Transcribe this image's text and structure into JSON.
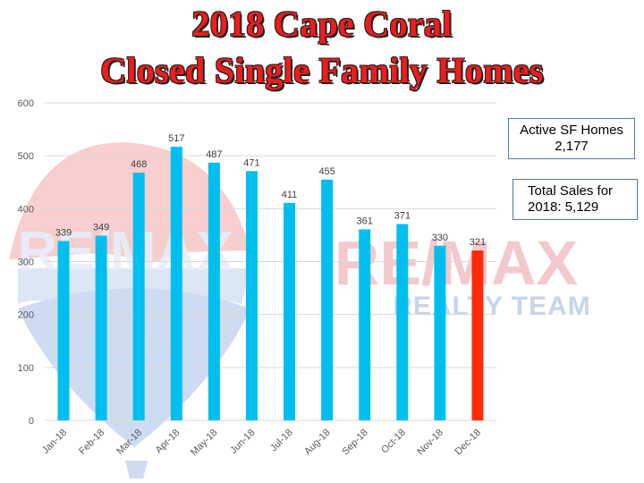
{
  "title_line1": "2018 Cape Coral",
  "title_line2": "Closed Single Family Homes",
  "info_boxes": [
    {
      "line1": "Active SF Homes",
      "line2": "2,177"
    },
    {
      "line1": "Total Sales for",
      "line2": "2018: 5,129"
    }
  ],
  "watermark": {
    "brand": "RE/MAX",
    "subtitle": "REALTY TEAM"
  },
  "chart_data": {
    "type": "bar",
    "categories": [
      "Jan-18",
      "Feb-18",
      "Mar-18",
      "Apr-18",
      "May-18",
      "Jun-18",
      "Jul-18",
      "Aug-18",
      "Sep-18",
      "Oct-18",
      "Nov-18",
      "Dec-18"
    ],
    "values": [
      339,
      349,
      468,
      517,
      487,
      471,
      411,
      455,
      361,
      371,
      330,
      321
    ],
    "data_labels": [
      "339",
      "349",
      "468",
      "517",
      "487",
      "471",
      "411",
      "455",
      "361",
      "371",
      "330",
      "321"
    ],
    "ylim": [
      0,
      600
    ],
    "yticks": [
      0,
      100,
      200,
      300,
      400,
      500,
      600
    ],
    "bar_colors": [
      "#00bfef",
      "#00bfef",
      "#00bfef",
      "#00bfef",
      "#00bfef",
      "#00bfef",
      "#00bfef",
      "#00bfef",
      "#00bfef",
      "#00bfef",
      "#00bfef",
      "#ff2a0a"
    ],
    "grid": true,
    "legend": "none"
  }
}
